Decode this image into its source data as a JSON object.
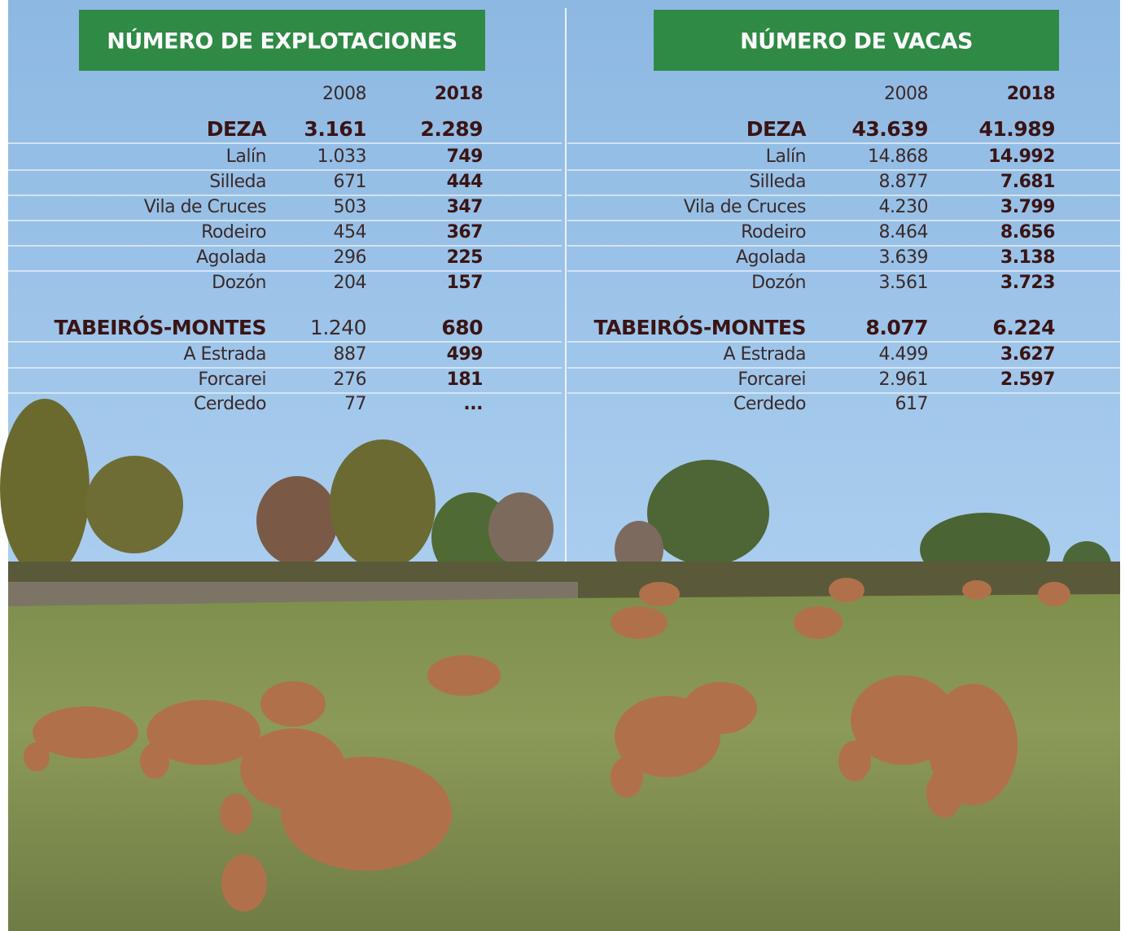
{
  "tables": [
    {
      "title": "NÚMERO DE EXPLOTACIONES",
      "header": [
        "2008",
        "2018"
      ],
      "rows": [
        [
          "DEZA",
          "3.161",
          "2.289"
        ],
        [
          "Lalín",
          "1.033",
          "749"
        ],
        [
          "Silleda",
          "671",
          "444"
        ],
        [
          "Vila de Cruces",
          "503",
          "347"
        ],
        [
          "Rodeiro",
          "454",
          "367"
        ],
        [
          "Agolada",
          "296",
          "225"
        ],
        [
          "Dozón",
          "204",
          "157"
        ],
        [
          "TABEIRÓS-MONTES",
          "1.240",
          "680"
        ],
        [
          "A Estrada",
          "887",
          "499"
        ],
        [
          "Forcarei",
          "276",
          "181"
        ],
        [
          "Cerdedo",
          "77",
          "..."
        ]
      ]
    },
    {
      "title": "NÚMERO DE VACAS",
      "header": [
        "2008",
        "2018"
      ],
      "rows": [
        [
          "DEZA",
          "43.639",
          "41.989"
        ],
        [
          "Lalín",
          "14.868",
          "14.992"
        ],
        [
          "Silleda",
          "8.877",
          "7.681"
        ],
        [
          "Vila de Cruces",
          "4.230",
          "3.799"
        ],
        [
          "Rodeiro",
          "8.464",
          "8.656"
        ],
        [
          "Agolada",
          "3.639",
          "3.138"
        ],
        [
          "Dozón",
          "3.561",
          "3.723"
        ],
        [
          "TABEIRÓS-MONTES",
          "8.077",
          "6.224"
        ],
        [
          "A Estrada",
          "4.499",
          "3.627"
        ],
        [
          "Forcarei",
          "2.961",
          "2.597"
        ],
        [
          "Cerdedo",
          "617"
        ]
      ]
    }
  ]
}
